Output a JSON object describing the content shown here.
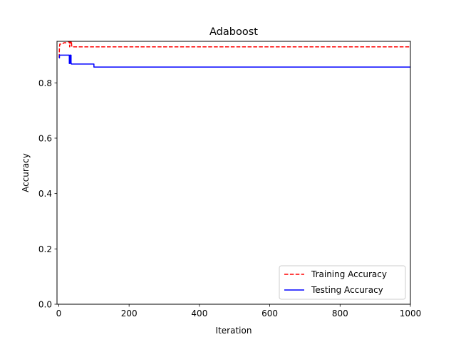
{
  "chart_data": {
    "type": "line",
    "title": "Adaboost",
    "xlabel": "Iteration",
    "ylabel": "Accuracy",
    "xlim": [
      -5,
      1000
    ],
    "ylim": [
      0.0,
      0.95
    ],
    "xticks": [
      0,
      200,
      400,
      600,
      800,
      1000
    ],
    "xtick_labels": [
      "0",
      "200",
      "400",
      "600",
      "800",
      "1000"
    ],
    "yticks": [
      0.0,
      0.2,
      0.4,
      0.6,
      0.8
    ],
    "ytick_labels": [
      "0.0",
      "0.2",
      "0.4",
      "0.6",
      "0.8"
    ],
    "grid": false,
    "legend_position": "lower-right",
    "series": [
      {
        "name": "Training Accuracy",
        "color": "#ff0000",
        "line_style": "dashed",
        "x": [
          1,
          2,
          3,
          4,
          5,
          10,
          15,
          20,
          25,
          28,
          30,
          31,
          32,
          33,
          34,
          35,
          36,
          37,
          38,
          40,
          1000
        ],
        "y": [
          0.89,
          0.93,
          0.94,
          0.94,
          0.94,
          0.94,
          0.945,
          0.945,
          0.948,
          0.948,
          0.95,
          0.93,
          0.95,
          0.94,
          0.95,
          0.945,
          0.95,
          0.93,
          0.93,
          0.93,
          0.93
        ]
      },
      {
        "name": "Testing Accuracy",
        "color": "#0000ff",
        "line_style": "solid",
        "x": [
          1,
          2,
          2,
          30,
          30,
          32,
          32,
          35,
          35,
          36,
          36,
          100,
          100,
          1000
        ],
        "y": [
          0.89,
          0.89,
          0.9,
          0.9,
          0.87,
          0.87,
          0.9,
          0.9,
          0.87,
          0.87,
          0.868,
          0.868,
          0.857,
          0.857
        ]
      }
    ]
  }
}
